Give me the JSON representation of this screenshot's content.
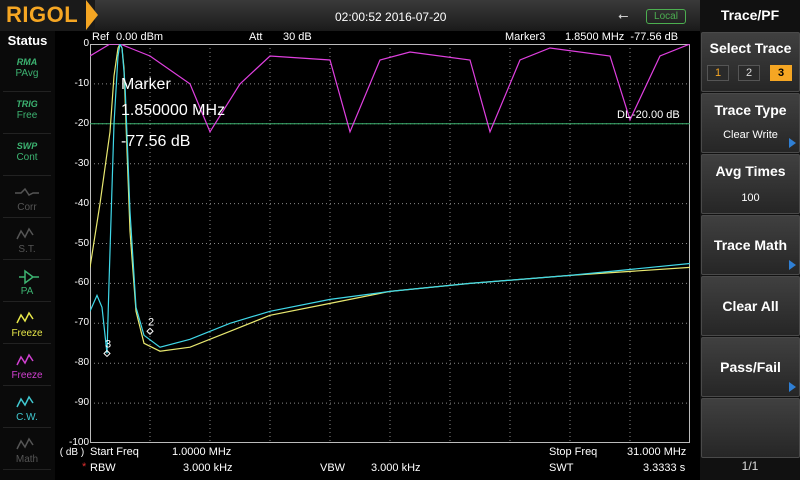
{
  "header": {
    "brand": "RIGOL",
    "datetime": "02:00:52 2016-07-20",
    "usb_icon": "usb-icon",
    "remote_status": "Local"
  },
  "status_panel": {
    "title": "Status",
    "items": [
      {
        "top": "RMA",
        "bottom": "PAvg",
        "icon": "trace-detect-icon",
        "color": "#3cb371"
      },
      {
        "top": "TRIG",
        "bottom": "Free",
        "icon": "trigger-icon",
        "color": "#3cb371"
      },
      {
        "top": "SWP",
        "bottom": "Cont",
        "icon": "sweep-icon",
        "color": "#3cb371"
      },
      {
        "top": "",
        "bottom": "Corr",
        "icon": "correction-icon",
        "color": "#555555"
      },
      {
        "top": "",
        "bottom": "S.T.",
        "icon": "source-tracking-icon",
        "color": "#555555"
      },
      {
        "top": "",
        "bottom": "PA",
        "icon": "preamp-icon",
        "color": "#3cb371"
      },
      {
        "top": "",
        "bottom": "Freeze",
        "icon": "freeze-yellow-icon",
        "color": "#e8e84a"
      },
      {
        "top": "",
        "bottom": "Freeze",
        "icon": "freeze-magenta-icon",
        "color": "#d040d0"
      },
      {
        "top": "",
        "bottom": "C.W.",
        "icon": "clear-write-icon",
        "color": "#40c8d0"
      },
      {
        "top": "",
        "bottom": "Math",
        "icon": "math-icon",
        "color": "#555555"
      }
    ]
  },
  "plot": {
    "ref_label": "Ref",
    "ref_value": "0.00 dBm",
    "att_label": "Att",
    "att_value": "30 dB",
    "marker_readout_label": "Marker3",
    "marker_readout_value": "1.8500 MHz  -77.56 dB",
    "y_ticks": [
      "0",
      "-10",
      "-20",
      "-30",
      "-40",
      "-50",
      "-60",
      "-70",
      "-80",
      "-90",
      "-100"
    ],
    "y_unit": "( dB )",
    "display_line_label": "DL",
    "display_line_value": "-20.00 dB",
    "display_line_level_db": -20,
    "marker_box": {
      "title": "Marker",
      "freq": "1.850000 MHz",
      "level": "-77.56 dB"
    },
    "marker_labels": [
      "2",
      "3"
    ],
    "start_freq_label": "Start Freq",
    "start_freq_value": "1.0000 MHz",
    "stop_freq_label": "Stop Freq",
    "stop_freq_value": "31.000 MHz",
    "rbw_label": "RBW",
    "rbw_value": "3.000 kHz",
    "vbw_label": "VBW",
    "vbw_value": "3.000 kHz",
    "swt_label": "SWT",
    "swt_value": "3.3333 s",
    "colors": {
      "trace1": "#e8e870",
      "trace2": "#e040e0",
      "trace3": "#40d8e8",
      "display_line": "#3cb371",
      "grid": "#8a8a8a"
    }
  },
  "chart_data": {
    "type": "line",
    "xlim": [
      1.0,
      31.0
    ],
    "ylim": [
      -100,
      0
    ],
    "series": [
      {
        "name": "1",
        "x": [
          1.0,
          1.5,
          2.0,
          2.2,
          2.4,
          2.5,
          2.6,
          2.7,
          2.8,
          3.0,
          3.3,
          3.7,
          4.5,
          6.0,
          8.0,
          10.0,
          13.0,
          16.0,
          20.0,
          25.0,
          31.0
        ],
        "y": [
          -56,
          -40,
          -22,
          -8,
          -1,
          0,
          -1,
          -6,
          -20,
          -47,
          -67,
          -75,
          -77,
          -76,
          -72,
          -68,
          -65,
          -62,
          -60,
          -58,
          -56
        ]
      },
      {
        "name": "2",
        "x": [
          1.0,
          2.0,
          2.5,
          3.0,
          4.0,
          6.0,
          7.0,
          8.5,
          10.0,
          13.0,
          14.0,
          15.5,
          17.0,
          20.0,
          21.0,
          22.5,
          24.0,
          27.0,
          28.0,
          29.5,
          31.0
        ],
        "y": [
          -3,
          0,
          0,
          -1,
          -3,
          -10,
          -22,
          -10,
          -3,
          -4,
          -22,
          -4,
          -2,
          -4,
          -22,
          -4,
          -1,
          -3,
          -19,
          -3,
          0
        ]
      },
      {
        "name": "3",
        "x": [
          1.0,
          1.35,
          1.6,
          1.85,
          1.95,
          2.2,
          2.4,
          2.5,
          2.6,
          2.75,
          3.0,
          3.3,
          3.7,
          4.5,
          6.0,
          8.0,
          10.0,
          13.0,
          16.0,
          20.0,
          25.0,
          31.0
        ],
        "y": [
          -67,
          -63,
          -66,
          -77.56,
          -60,
          -20,
          -3,
          0,
          -1,
          -10,
          -42,
          -66,
          -73,
          -76,
          -74,
          -70,
          -67,
          -64,
          -62,
          -60,
          -58,
          -55
        ]
      }
    ],
    "markers": [
      {
        "label": "2",
        "x": 4.0,
        "y": -72
      },
      {
        "label": "3",
        "x": 1.85,
        "y": -77.56
      }
    ]
  },
  "right_panel": {
    "title": "Trace/PF",
    "select_trace_label": "Select Trace",
    "trace_options": [
      "1",
      "2",
      "3"
    ],
    "trace_selected": "3",
    "trace_type_label": "Trace Type",
    "trace_type_value": "Clear Write",
    "avg_times_label": "Avg Times",
    "avg_times_value": "100",
    "trace_math_label": "Trace Math",
    "clear_all_label": "Clear All",
    "pass_fail_label": "Pass/Fail",
    "page_indicator": "1/1"
  }
}
